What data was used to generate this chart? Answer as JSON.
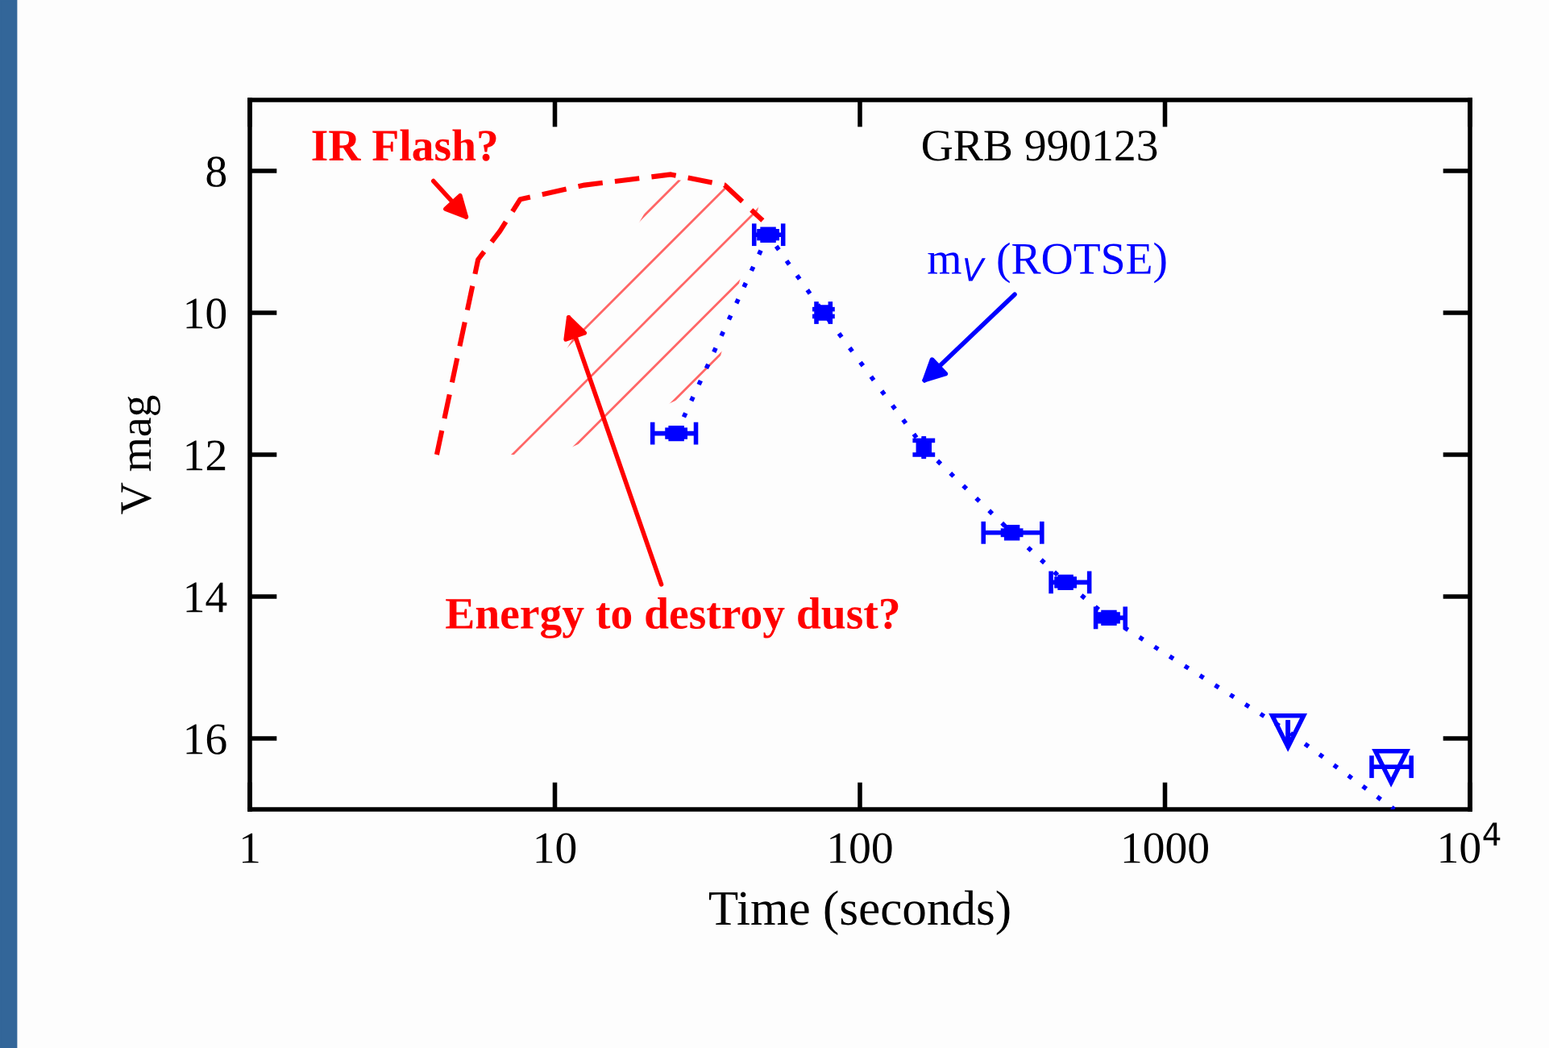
{
  "chart_data": {
    "type": "line",
    "xlabel": "Time (seconds)",
    "ylabel": "V mag",
    "log": "x",
    "xlim": [
      1,
      10000
    ],
    "ylim": [
      17,
      7
    ],
    "xticks": [
      1,
      10,
      100,
      1000,
      {
        "value": 10000,
        "label": "10$^{4}$"
      }
    ],
    "yticks": [
      8,
      10,
      12,
      14,
      16
    ],
    "grid": false,
    "annotations": [
      "GRB 990123",
      "IR Flash?",
      "Energy to destroy dust?",
      "m$_{V}$ (ROTSE)"
    ],
    "series": [
      {
        "line_style": "dashed",
        "marker": "none",
        "color": "#ff0000",
        "x": [
          4.1,
          5.6,
          6.6,
          7.7,
          12.5,
          24,
          36,
          48
        ],
        "values": [
          12.0,
          9.25,
          8.85,
          8.4,
          8.2,
          8.05,
          8.2,
          8.7
        ]
      },
      {
        "line_style": "dotted",
        "marker": "none",
        "color": "#0000ff",
        "x": [
          25,
          50,
          76,
          162,
          315,
          472,
          655,
          2530,
          5650
        ],
        "values": [
          11.7,
          8.9,
          10.0,
          11.9,
          13.1,
          13.8,
          14.3,
          15.9,
          17
        ]
      },
      {
        "type": "scatter",
        "marker": "square",
        "color": "#0000ff",
        "x": [
          25,
          50,
          76,
          162,
          315,
          472,
          655
        ],
        "values": [
          11.7,
          8.9,
          10.0,
          11.9,
          13.1,
          13.8,
          14.3
        ],
        "xerrors": [
          [
            20.9,
            29.0
          ],
          [
            45,
            56
          ],
          [
            72,
            80
          ],
          null,
          [
            254,
            395
          ],
          [
            423,
            565
          ],
          [
            593,
            741
          ]
        ],
        "errors": [
          0.05,
          0.05,
          0.05,
          0.1,
          0.03,
          0.05,
          0.05
        ]
      },
      {
        "type": "scatter",
        "marker": "triangle",
        "color": "#0000ff",
        "x": [
          2530,
          5510
        ],
        "values": [
          15.9,
          16.4
        ],
        "xerrors": [
          null,
          [
            4760,
            6420
          ]
        ]
      }
    ]
  }
}
